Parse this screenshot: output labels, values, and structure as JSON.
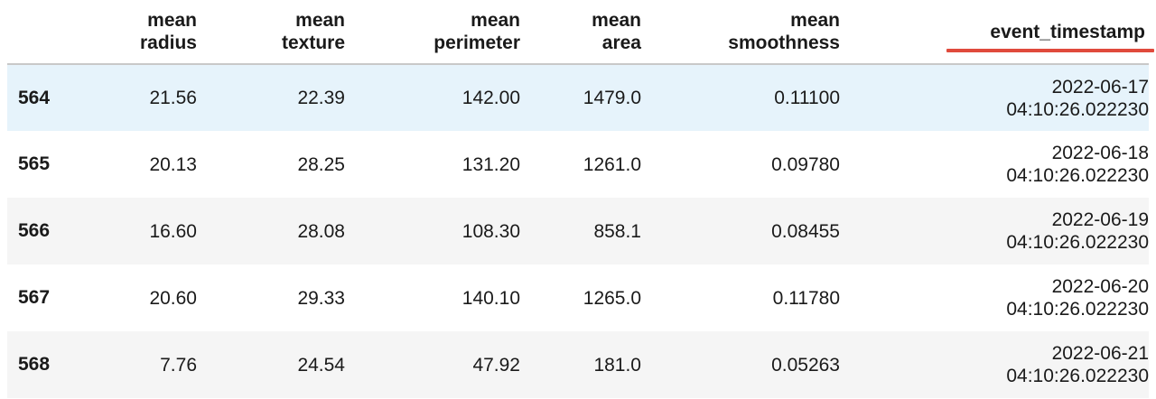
{
  "table": {
    "columns": [
      {
        "line1": "mean",
        "line2": "radius"
      },
      {
        "line1": "mean",
        "line2": "texture"
      },
      {
        "line1": "mean",
        "line2": "perimeter"
      },
      {
        "line1": "mean",
        "line2": "area"
      },
      {
        "line1": "mean",
        "line2": "smoothness"
      },
      {
        "line1": "",
        "line2": "event_timestamp"
      }
    ],
    "rows": [
      {
        "index": "564",
        "mean_radius": "21.56",
        "mean_texture": "22.39",
        "mean_perimeter": "142.00",
        "mean_area": "1479.0",
        "mean_smoothness": "0.11100",
        "ts_date": "2022-06-17",
        "ts_time": "04:10:26.022230"
      },
      {
        "index": "565",
        "mean_radius": "20.13",
        "mean_texture": "28.25",
        "mean_perimeter": "131.20",
        "mean_area": "1261.0",
        "mean_smoothness": "0.09780",
        "ts_date": "2022-06-18",
        "ts_time": "04:10:26.022230"
      },
      {
        "index": "566",
        "mean_radius": "16.60",
        "mean_texture": "28.08",
        "mean_perimeter": "108.30",
        "mean_area": "858.1",
        "mean_smoothness": "0.08455",
        "ts_date": "2022-06-19",
        "ts_time": "04:10:26.022230"
      },
      {
        "index": "567",
        "mean_radius": "20.60",
        "mean_texture": "29.33",
        "mean_perimeter": "140.10",
        "mean_area": "1265.0",
        "mean_smoothness": "0.11780",
        "ts_date": "2022-06-20",
        "ts_time": "04:10:26.022230"
      },
      {
        "index": "568",
        "mean_radius": "7.76",
        "mean_texture": "24.54",
        "mean_perimeter": "47.92",
        "mean_area": "181.0",
        "mean_smoothness": "0.05263",
        "ts_date": "2022-06-21",
        "ts_time": "04:10:26.022230"
      }
    ]
  },
  "colors": {
    "hover_row": "#e6f3fb",
    "stripe_row": "#f5f5f5",
    "annotation_underline": "#e04a3c",
    "header_border": "#c8c8c8"
  }
}
